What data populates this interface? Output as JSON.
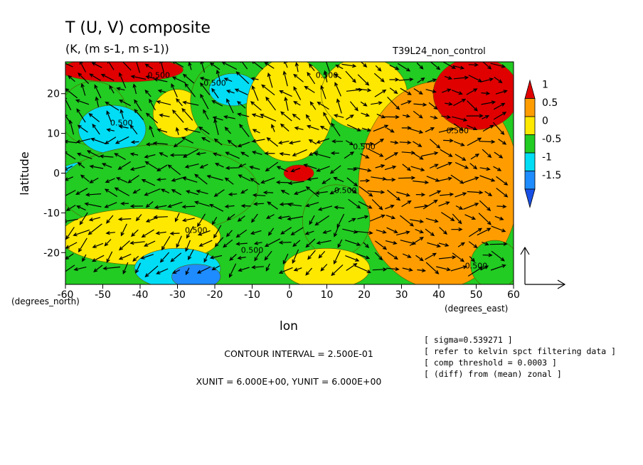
{
  "chart_data": {
    "type": "heatmap",
    "title": "T (U, V) composite",
    "subtitle": "(K, (m s-1, m s-1))",
    "run_label": "T39L24_non_control",
    "xlabel": "lon",
    "ylabel": "latitude",
    "x_unit_label": "(degrees_east)",
    "y_unit_label": "(degrees_north)",
    "xlim": [
      -60,
      60
    ],
    "ylim": [
      -28,
      28
    ],
    "x_ticks": [
      "-60",
      "-50",
      "-40",
      "-30",
      "-20",
      "-10",
      "0",
      "10",
      "20",
      "30",
      "40",
      "50",
      "60"
    ],
    "y_ticks": [
      "20",
      "10",
      "0",
      "-10",
      "-20"
    ],
    "colorbar": {
      "levels": [
        "1",
        "0.5",
        "0",
        "-0.5",
        "-1",
        "-1.5"
      ],
      "colors": [
        "#e00000",
        "#ff9d00",
        "#ffe800",
        "#22cc22",
        "#00ddf5",
        "#1e8cff",
        "#1850e6"
      ]
    },
    "contour_labels": [
      "0.500",
      "0.500",
      "0.500",
      "0.500",
      "0.500",
      "0.500",
      "0.500",
      "0.500",
      "0.500",
      "0.500"
    ],
    "info_lines": [
      "[ sigma=0.539271 ]",
      "[ refer to kelvin spct filtering data ]",
      "[ comp threshold = 0.0003 ]",
      "[ (diff) from (mean) zonal ]"
    ],
    "contour_interval": "CONTOUR INTERVAL = 2.500E-01",
    "vector_units": "XUNIT = 6.000E+00, YUNIT = 6.000E+00",
    "regions": [
      {
        "lon": [
          -60,
          -30
        ],
        "lat": [
          28,
          24
        ],
        "value": 1
      },
      {
        "lon": [
          -60,
          -45
        ],
        "lat": [
          22,
          8
        ],
        "value": -0.25
      },
      {
        "lon": [
          -55,
          -40
        ],
        "lat": [
          16,
          6
        ],
        "value": -0.75
      },
      {
        "lon": [
          -60,
          -45
        ],
        "lat": [
          2,
          -2
        ],
        "value": -0.75
      },
      {
        "lon": [
          -60,
          -10
        ],
        "lat": [
          6,
          -14
        ],
        "value": -0.25
      },
      {
        "lon": [
          -35,
          -25
        ],
        "lat": [
          20,
          10
        ],
        "value": 0.25
      },
      {
        "lon": [
          -25,
          -5
        ],
        "lat": [
          28,
          8
        ],
        "value": -0.25
      },
      {
        "lon": [
          -20,
          -10
        ],
        "lat": [
          24,
          18
        ],
        "value": -0.75
      },
      {
        "lon": [
          -60,
          -20
        ],
        "lat": [
          -10,
          -22
        ],
        "value": 0.25
      },
      {
        "lon": [
          -40,
          -20
        ],
        "lat": [
          -20,
          -28
        ],
        "value": -0.75
      },
      {
        "lon": [
          -30,
          -20
        ],
        "lat": [
          -24,
          -28
        ],
        "value": -1.25
      },
      {
        "lon": [
          -10,
          10
        ],
        "lat": [
          28,
          4
        ],
        "value": 0.25
      },
      {
        "lon": [
          10,
          30
        ],
        "lat": [
          28,
          12
        ],
        "value": 0.25
      },
      {
        "lon": [
          20,
          60
        ],
        "lat": [
          22,
          -28
        ],
        "value": 0.75
      },
      {
        "lon": [
          40,
          60
        ],
        "lat": [
          28,
          12
        ],
        "value": 1
      },
      {
        "lon": [
          0,
          5
        ],
        "lat": [
          1,
          -1
        ],
        "value": 1
      },
      {
        "lon": [
          5,
          20
        ],
        "lat": [
          -4,
          -20
        ],
        "value": -0.25
      },
      {
        "lon": [
          0,
          20
        ],
        "lat": [
          -20,
          -28
        ],
        "value": 0.25
      },
      {
        "lon": [
          50,
          60
        ],
        "lat": [
          -18,
          -28
        ],
        "value": -0.25
      }
    ]
  }
}
